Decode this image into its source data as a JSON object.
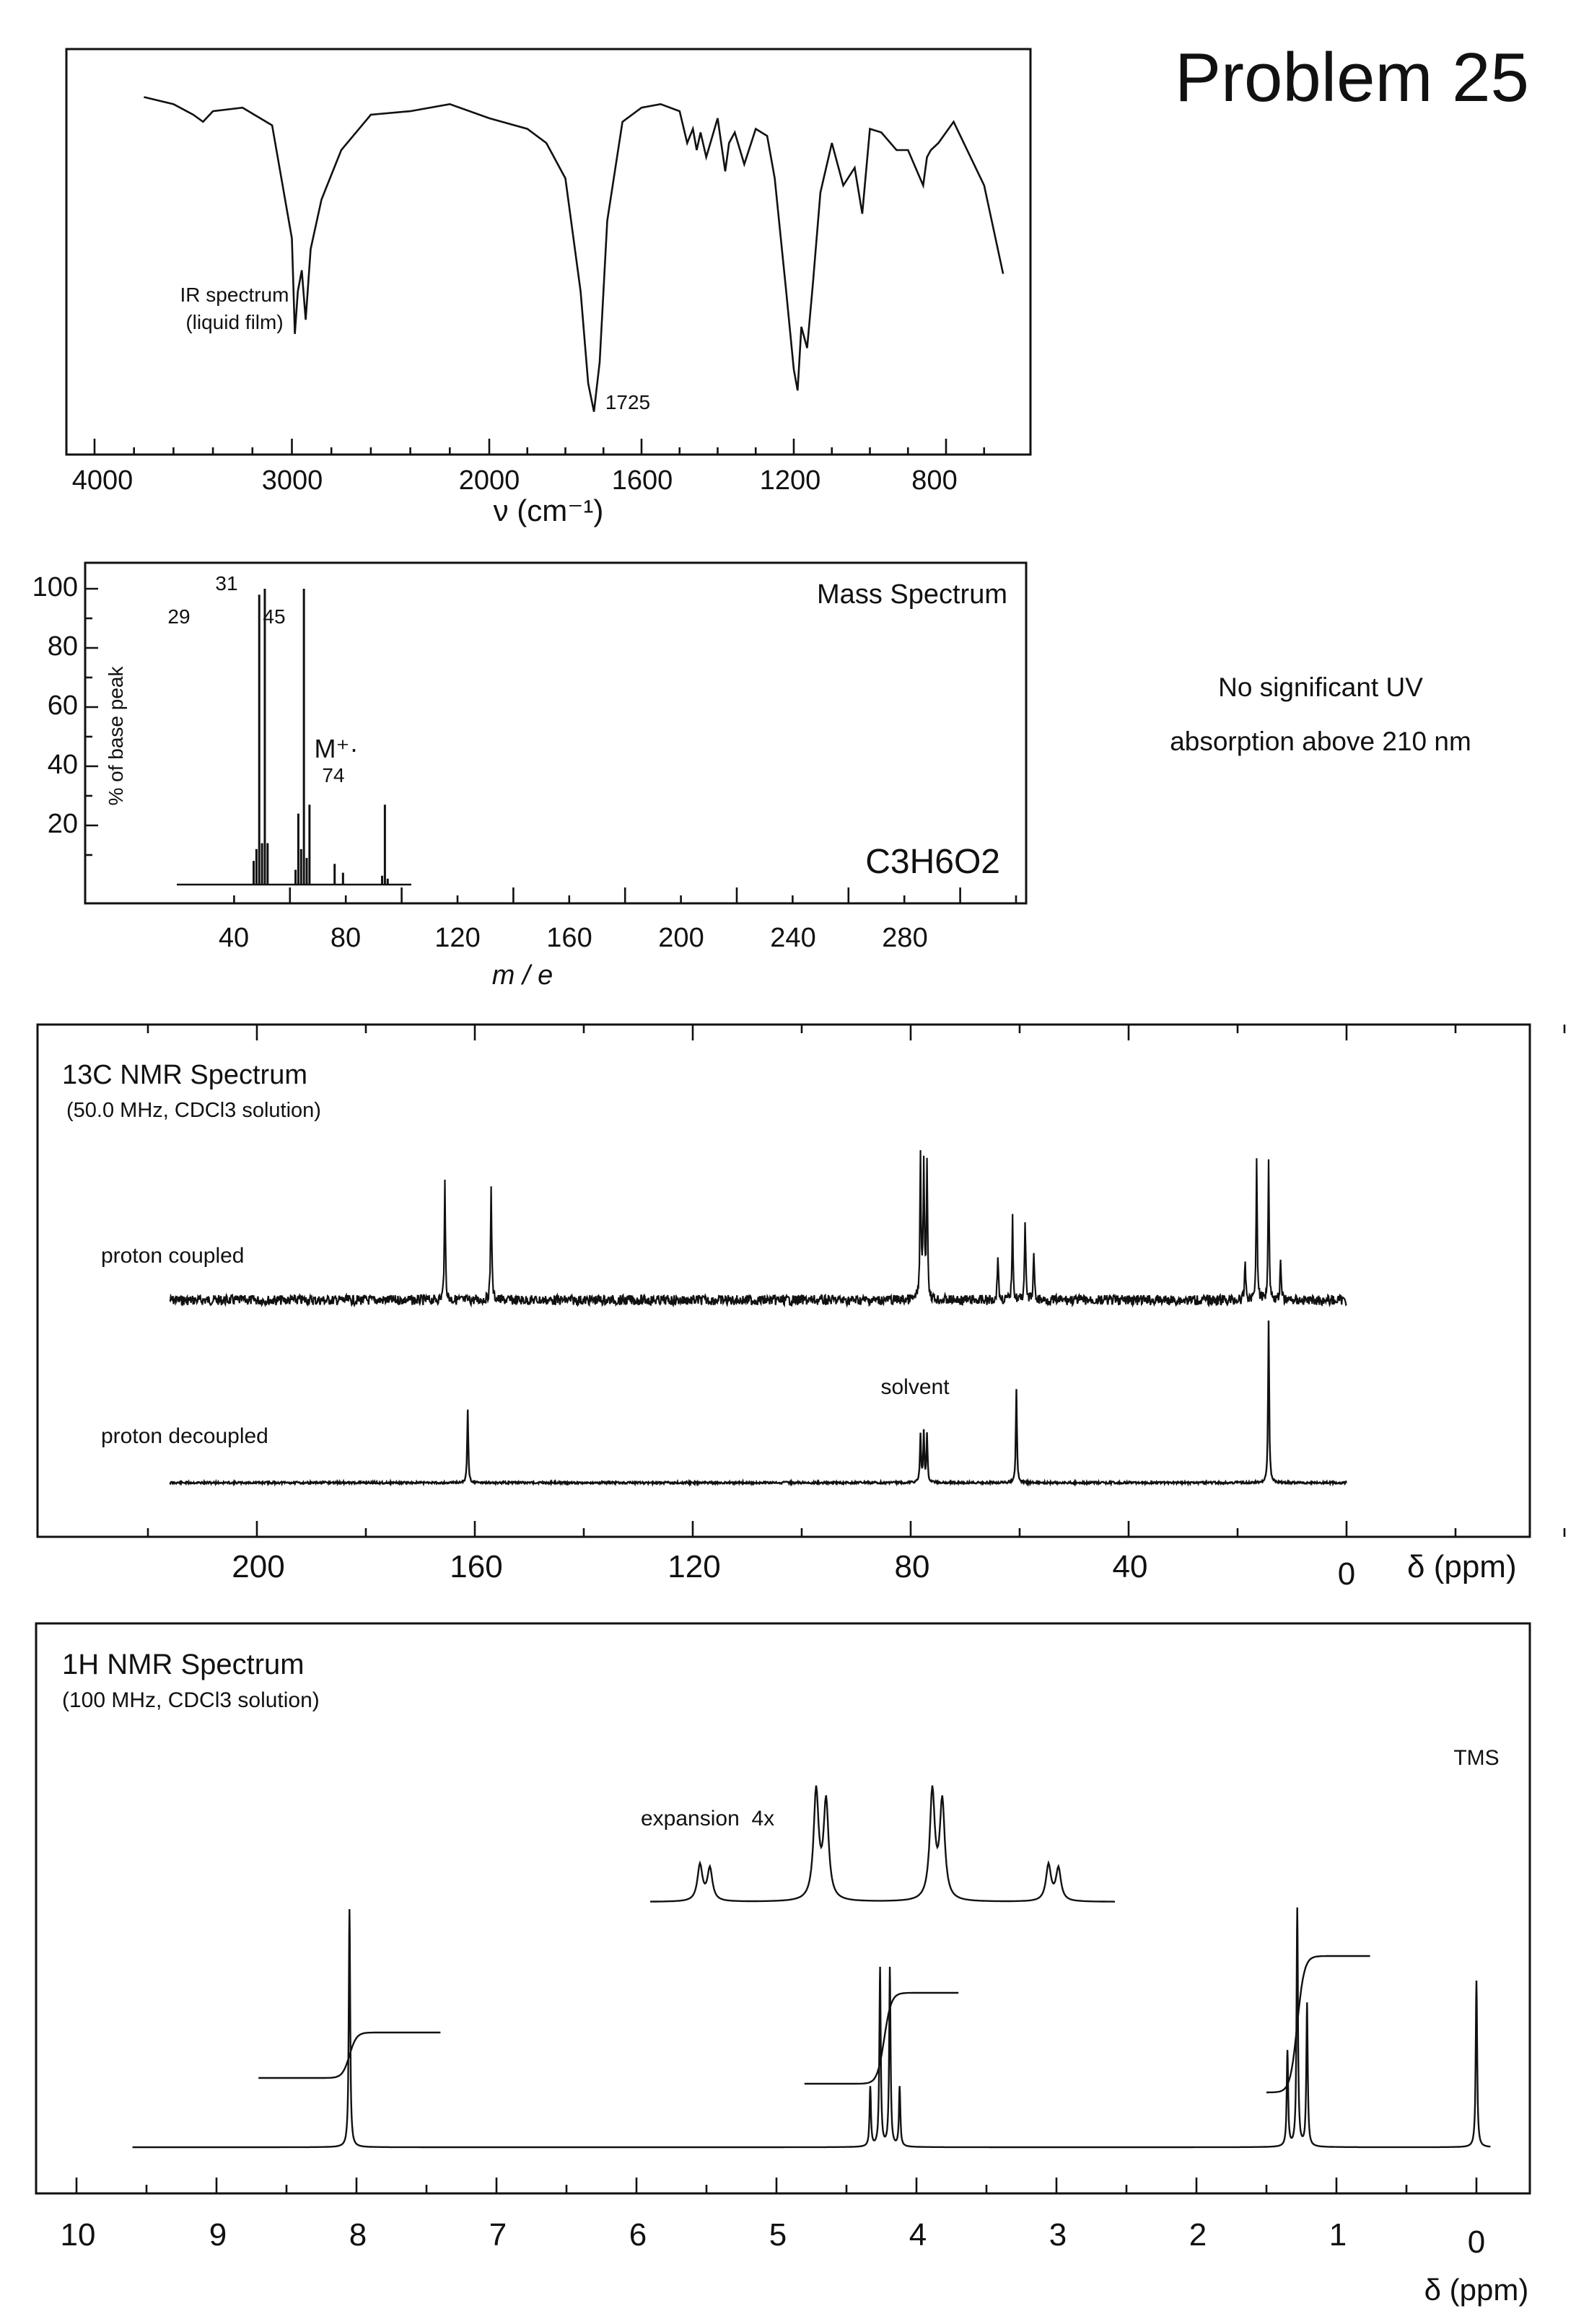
{
  "page": {
    "title": "Problem 25",
    "uv_note_line1": "No significant UV",
    "uv_note_line2": "absorption above 210 nm"
  },
  "chart_data": [
    {
      "id": "ir",
      "type": "line",
      "title": "IR spectrum",
      "subtitle": "(liquid film)",
      "xlabel": "ν (cm⁻¹)",
      "ylabel": "",
      "x_tick_labels": [
        "4000",
        "3000",
        "2000",
        "1600",
        "1200",
        "800"
      ],
      "annotations": [
        {
          "x": 1725,
          "label": "1725"
        }
      ],
      "x_reversed": true,
      "series": [
        {
          "x": [
            3750,
            3600,
            3500,
            3450,
            3400,
            3250,
            3100,
            3000,
            2985,
            2970,
            2950,
            2930,
            2905,
            2850,
            2750,
            2600,
            2400,
            2200,
            2000,
            1900,
            1850,
            1800,
            1760,
            1740,
            1725,
            1710,
            1690,
            1650,
            1600,
            1550,
            1500,
            1480,
            1465,
            1455,
            1445,
            1430,
            1400,
            1380,
            1370,
            1355,
            1330,
            1300,
            1270,
            1250,
            1220,
            1200,
            1190,
            1180,
            1165,
            1150,
            1130,
            1100,
            1070,
            1040,
            1020,
            1000,
            970,
            930,
            900,
            860,
            850,
            840,
            820,
            780,
            700,
            650
          ],
          "y": [
            95,
            93,
            90,
            88,
            91,
            92,
            87,
            55,
            28,
            40,
            46,
            32,
            52,
            66,
            80,
            90,
            91,
            93,
            89,
            86,
            82,
            72,
            40,
            14,
            6,
            20,
            60,
            88,
            92,
            93,
            91,
            82,
            86,
            80,
            85,
            78,
            89,
            74,
            82,
            85,
            76,
            86,
            84,
            72,
            40,
            18,
            12,
            30,
            24,
            42,
            68,
            82,
            70,
            75,
            62,
            86,
            85,
            80,
            80,
            70,
            78,
            80,
            82,
            88,
            70,
            45
          ]
        }
      ]
    },
    {
      "id": "mass",
      "type": "bar",
      "title": "Mass Spectrum",
      "formula": "C3H6O2",
      "xlabel": "m / e",
      "ylabel": "% of base peak",
      "x_tick_labels": [
        "40",
        "80",
        "120",
        "160",
        "200",
        "240",
        "280"
      ],
      "y_tick_labels": [
        "20",
        "40",
        "60",
        "80",
        "100"
      ],
      "xlim": [
        0,
        320
      ],
      "ylim": [
        0,
        110
      ],
      "molecular_ion_label": "M⁺·",
      "peak_labels": [
        {
          "x": 29,
          "label": "29"
        },
        {
          "x": 31,
          "label": "31"
        },
        {
          "x": 45,
          "label": "45"
        },
        {
          "x": 74,
          "label": "74"
        }
      ],
      "peaks": {
        "x": [
          27,
          28,
          29,
          30,
          31,
          32,
          42,
          43,
          44,
          45,
          46,
          47,
          56,
          59,
          73,
          74,
          75
        ],
        "y": [
          8,
          12,
          98,
          14,
          100,
          14,
          5,
          24,
          12,
          100,
          9,
          27,
          7,
          4,
          3,
          27,
          2
        ]
      }
    },
    {
      "id": "c13",
      "type": "line",
      "title": "13C NMR Spectrum",
      "subtitle": "(50.0 MHz, CDCl3 solution)",
      "xlabel": "δ (ppm)",
      "x_tick_labels": [
        "200",
        "160",
        "120",
        "80",
        "40",
        "0"
      ],
      "x_reversed": true,
      "traces": [
        {
          "name": "proton coupled",
          "peaks": {
            "x": [
              165.5,
              157.0,
              78.2,
              77.6,
              77.0,
              64.0,
              61.3,
              59.0,
              57.4,
              18.6,
              16.5,
              14.3,
              12.1
            ],
            "y": [
              100,
              100,
              120,
              120,
              120,
              40,
              70,
              70,
              40,
              35,
              120,
              120,
              35
            ]
          }
        },
        {
          "name": "proton decoupled",
          "peaks": {
            "x": [
              161.3,
              78.2,
              77.6,
              77.0,
              60.6,
              14.3
            ],
            "y": [
              45,
              30,
              30,
              30,
              58,
              100
            ]
          }
        }
      ],
      "annotations": [
        {
          "x": 77.6,
          "label": "solvent"
        }
      ]
    },
    {
      "id": "h1",
      "type": "line",
      "title": "1H NMR Spectrum",
      "subtitle": "(100 MHz, CDCl3 solution)",
      "xlabel": "δ (ppm)",
      "x_tick_labels": [
        "10",
        "9",
        "8",
        "7",
        "6",
        "5",
        "4",
        "3",
        "2",
        "1",
        "0"
      ],
      "x_reversed": true,
      "peaks": {
        "x": [
          8.05,
          4.33,
          4.26,
          4.19,
          4.12,
          1.35,
          1.28,
          1.21,
          0.0
        ],
        "y": [
          100,
          25,
          75,
          75,
          25,
          40,
          100,
          60,
          70
        ]
      },
      "integral_steps": {
        "x": [
          8.05,
          4.23,
          1.28
        ],
        "h": [
          1,
          2,
          3
        ]
      },
      "inset": {
        "label": "expansion  4x"
      },
      "annotations": [
        {
          "x": 0.0,
          "label": "TMS"
        }
      ]
    }
  ]
}
